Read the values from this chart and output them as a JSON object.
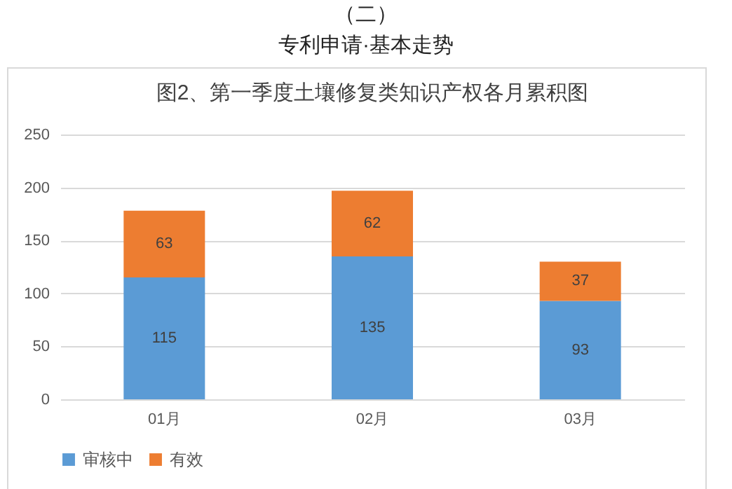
{
  "chart_data": {
    "type": "bar",
    "title": "图2、第一季度土壤修复类知识产权各月累积图",
    "annotations": [
      "（二）",
      "专利申请·基本走势"
    ],
    "categories": [
      "01月",
      "02月",
      "03月"
    ],
    "series": [
      {
        "name": "审核中",
        "color": "#5b9bd5",
        "values": [
          115,
          135,
          93
        ]
      },
      {
        "name": "有效",
        "color": "#ed7d31",
        "values": [
          63,
          62,
          37
        ]
      }
    ],
    "stacked": true,
    "ylim": [
      0,
      250
    ],
    "yticks": [
      0,
      50,
      100,
      150,
      200,
      250
    ],
    "grid": "y",
    "legend": "bottom",
    "data_labels": true
  }
}
